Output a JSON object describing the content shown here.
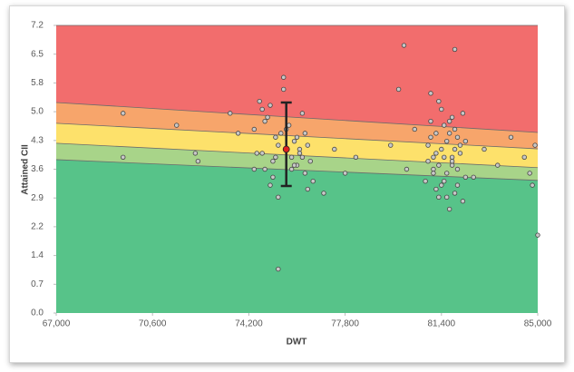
{
  "chart_data": {
    "type": "scatter",
    "x_label": "DWT",
    "y_label": "Attained CII",
    "xlim": [
      67000,
      85000
    ],
    "xticks": [
      {
        "value": 67000,
        "label": "67,000"
      },
      {
        "value": 70600,
        "label": "70,600"
      },
      {
        "value": 74200,
        "label": "74,200"
      },
      {
        "value": 77800,
        "label": "77,800"
      },
      {
        "value": 81400,
        "label": "81,400"
      },
      {
        "value": 85000,
        "label": "85,000"
      }
    ],
    "ylim": [
      0,
      7.2
    ],
    "yticks": [
      {
        "value": 0,
        "label": "0.0"
      },
      {
        "value": 0.72,
        "label": "0.7"
      },
      {
        "value": 1.44,
        "label": "1.4"
      },
      {
        "value": 2.16,
        "label": "2.2"
      },
      {
        "value": 2.88,
        "label": "2.9"
      },
      3.6,
      {
        "value": 4.32,
        "label": "4.3"
      },
      {
        "value": 5.04,
        "label": "5.0"
      },
      {
        "value": 5.76,
        "label": "5.8"
      },
      {
        "value": 6.48,
        "label": "6.5"
      },
      7.2
    ],
    "background_color": "#f26d6d",
    "boundaries": [
      {
        "color": "#f7a56b",
        "x": [
          67000,
          85000
        ],
        "values": [
          5.27,
          4.52
        ]
      },
      {
        "color": "#fde16b",
        "x": [
          67000,
          85000
        ],
        "values": [
          4.75,
          4.11
        ]
      },
      {
        "color": "#a8d489",
        "x": [
          67000,
          85000
        ],
        "values": [
          4.25,
          3.64
        ]
      },
      {
        "color": "#57c389",
        "x": [
          67000,
          85000
        ],
        "values": [
          3.84,
          3.32
        ]
      }
    ],
    "points": {
      "color": "#c8c8c8",
      "x": [
        74400,
        74600,
        74700,
        74800,
        74900,
        75000,
        75100,
        75200,
        75300,
        75400,
        75500,
        75700,
        75800,
        75900,
        76000,
        76100,
        76200,
        76300,
        76400,
        76500,
        76600,
        74500,
        74800,
        75000,
        75200,
        75600,
        75800,
        76000,
        76200,
        76400,
        74700,
        75100,
        75300,
        75900,
        76300,
        74400,
        75500,
        76100,
        75300,
        77000,
        77400,
        77800,
        78200,
        73800,
        73500,
        80800,
        80900,
        81000,
        81100,
        81200,
        81300,
        81400,
        81500,
        81600,
        81700,
        81800,
        81900,
        82000,
        82100,
        82200,
        82300,
        80900,
        81000,
        81200,
        81300,
        81500,
        81600,
        81800,
        81900,
        82100,
        82200,
        81000,
        81100,
        81400,
        81500,
        81700,
        81800,
        82000,
        82300,
        81200,
        81600,
        81900,
        81300,
        81700,
        82000,
        81100,
        81400,
        81800,
        80400,
        80100,
        79800,
        79500,
        80000,
        81900,
        82600,
        83000,
        83500,
        84000,
        84500,
        84800,
        85000,
        84900,
        84700,
        69500,
        69500,
        71500,
        72300,
        72200
      ],
      "y": [
        4.6,
        5.3,
        4.0,
        3.6,
        4.9,
        5.2,
        3.4,
        4.4,
        1.1,
        4.5,
        5.6,
        4.7,
        3.9,
        4.3,
        3.7,
        4.1,
        5.0,
        3.5,
        4.2,
        3.8,
        3.3,
        4.0,
        4.8,
        3.2,
        3.9,
        4.6,
        3.6,
        4.4,
        3.9,
        3.1,
        5.1,
        3.8,
        4.2,
        3.7,
        4.5,
        3.6,
        5.9,
        4.0,
        2.9,
        3.0,
        4.1,
        3.5,
        3.9,
        4.5,
        5.0,
        3.3,
        4.2,
        4.8,
        3.6,
        4.5,
        2.9,
        5.1,
        3.9,
        4.3,
        2.6,
        3.7,
        4.6,
        3.2,
        4.0,
        5.0,
        3.4,
        3.8,
        4.4,
        3.1,
        5.3,
        4.7,
        3.5,
        4.9,
        3.0,
        4.2,
        2.8,
        5.5,
        3.9,
        4.1,
        3.3,
        4.5,
        3.8,
        3.6,
        4.3,
        4.0,
        2.9,
        4.1,
        3.7,
        4.8,
        4.4,
        3.5,
        3.2,
        3.9,
        4.6,
        3.6,
        5.6,
        4.2,
        6.7,
        6.6,
        3.4,
        4.1,
        3.7,
        4.4,
        3.9,
        3.2,
        1.95,
        4.2,
        3.5,
        5.0,
        3.9,
        4.7,
        3.8,
        4.0
      ]
    },
    "error_bar": {
      "x": 75600,
      "value": 4.1,
      "low": 3.18,
      "high": 5.27,
      "color": "#222222",
      "marker_color": "#e02020"
    }
  }
}
